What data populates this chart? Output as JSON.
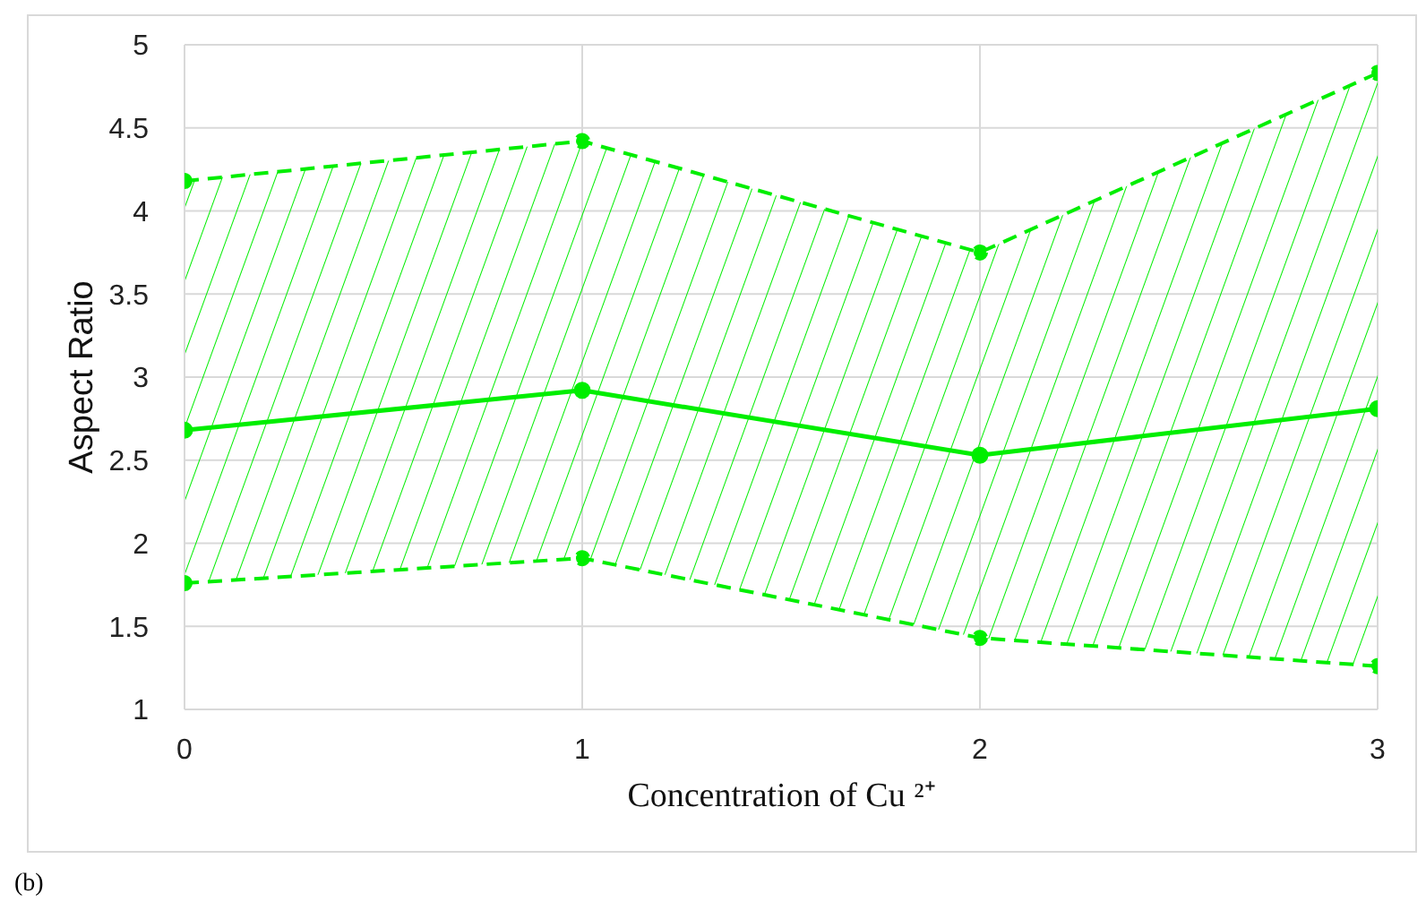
{
  "chart_data": {
    "type": "line",
    "xlabel": "Concentration of Cu ²⁺",
    "ylabel": "Aspect Ratio",
    "x": [
      0,
      1,
      2,
      3
    ],
    "series": [
      {
        "color": "#00ee00",
        "values": [
          2.68,
          2.92,
          2.53,
          2.81
        ],
        "lower": [
          1.76,
          1.91,
          1.43,
          1.26
        ],
        "upper": [
          4.18,
          4.42,
          3.75,
          4.83
        ]
      },
      {
        "color": "#00ee00",
        "values": [
          4.18,
          4.42,
          3.75,
          4.83
        ],
        "line_style": "dashed"
      },
      {
        "color": "#00ee00",
        "values": [
          1.76,
          1.91,
          1.43,
          1.26
        ],
        "line_style": "dashed"
      }
    ],
    "xlim": [
      0,
      3
    ],
    "xticks": [
      0,
      1,
      2,
      3
    ],
    "ylim": [
      1,
      5
    ],
    "yticks": [
      1,
      1.5,
      2,
      2.5,
      3,
      3.5,
      4,
      4.5,
      5
    ],
    "grid": true,
    "marker": "circle",
    "line_style": "solid",
    "annotations": [
      "(b)"
    ]
  }
}
